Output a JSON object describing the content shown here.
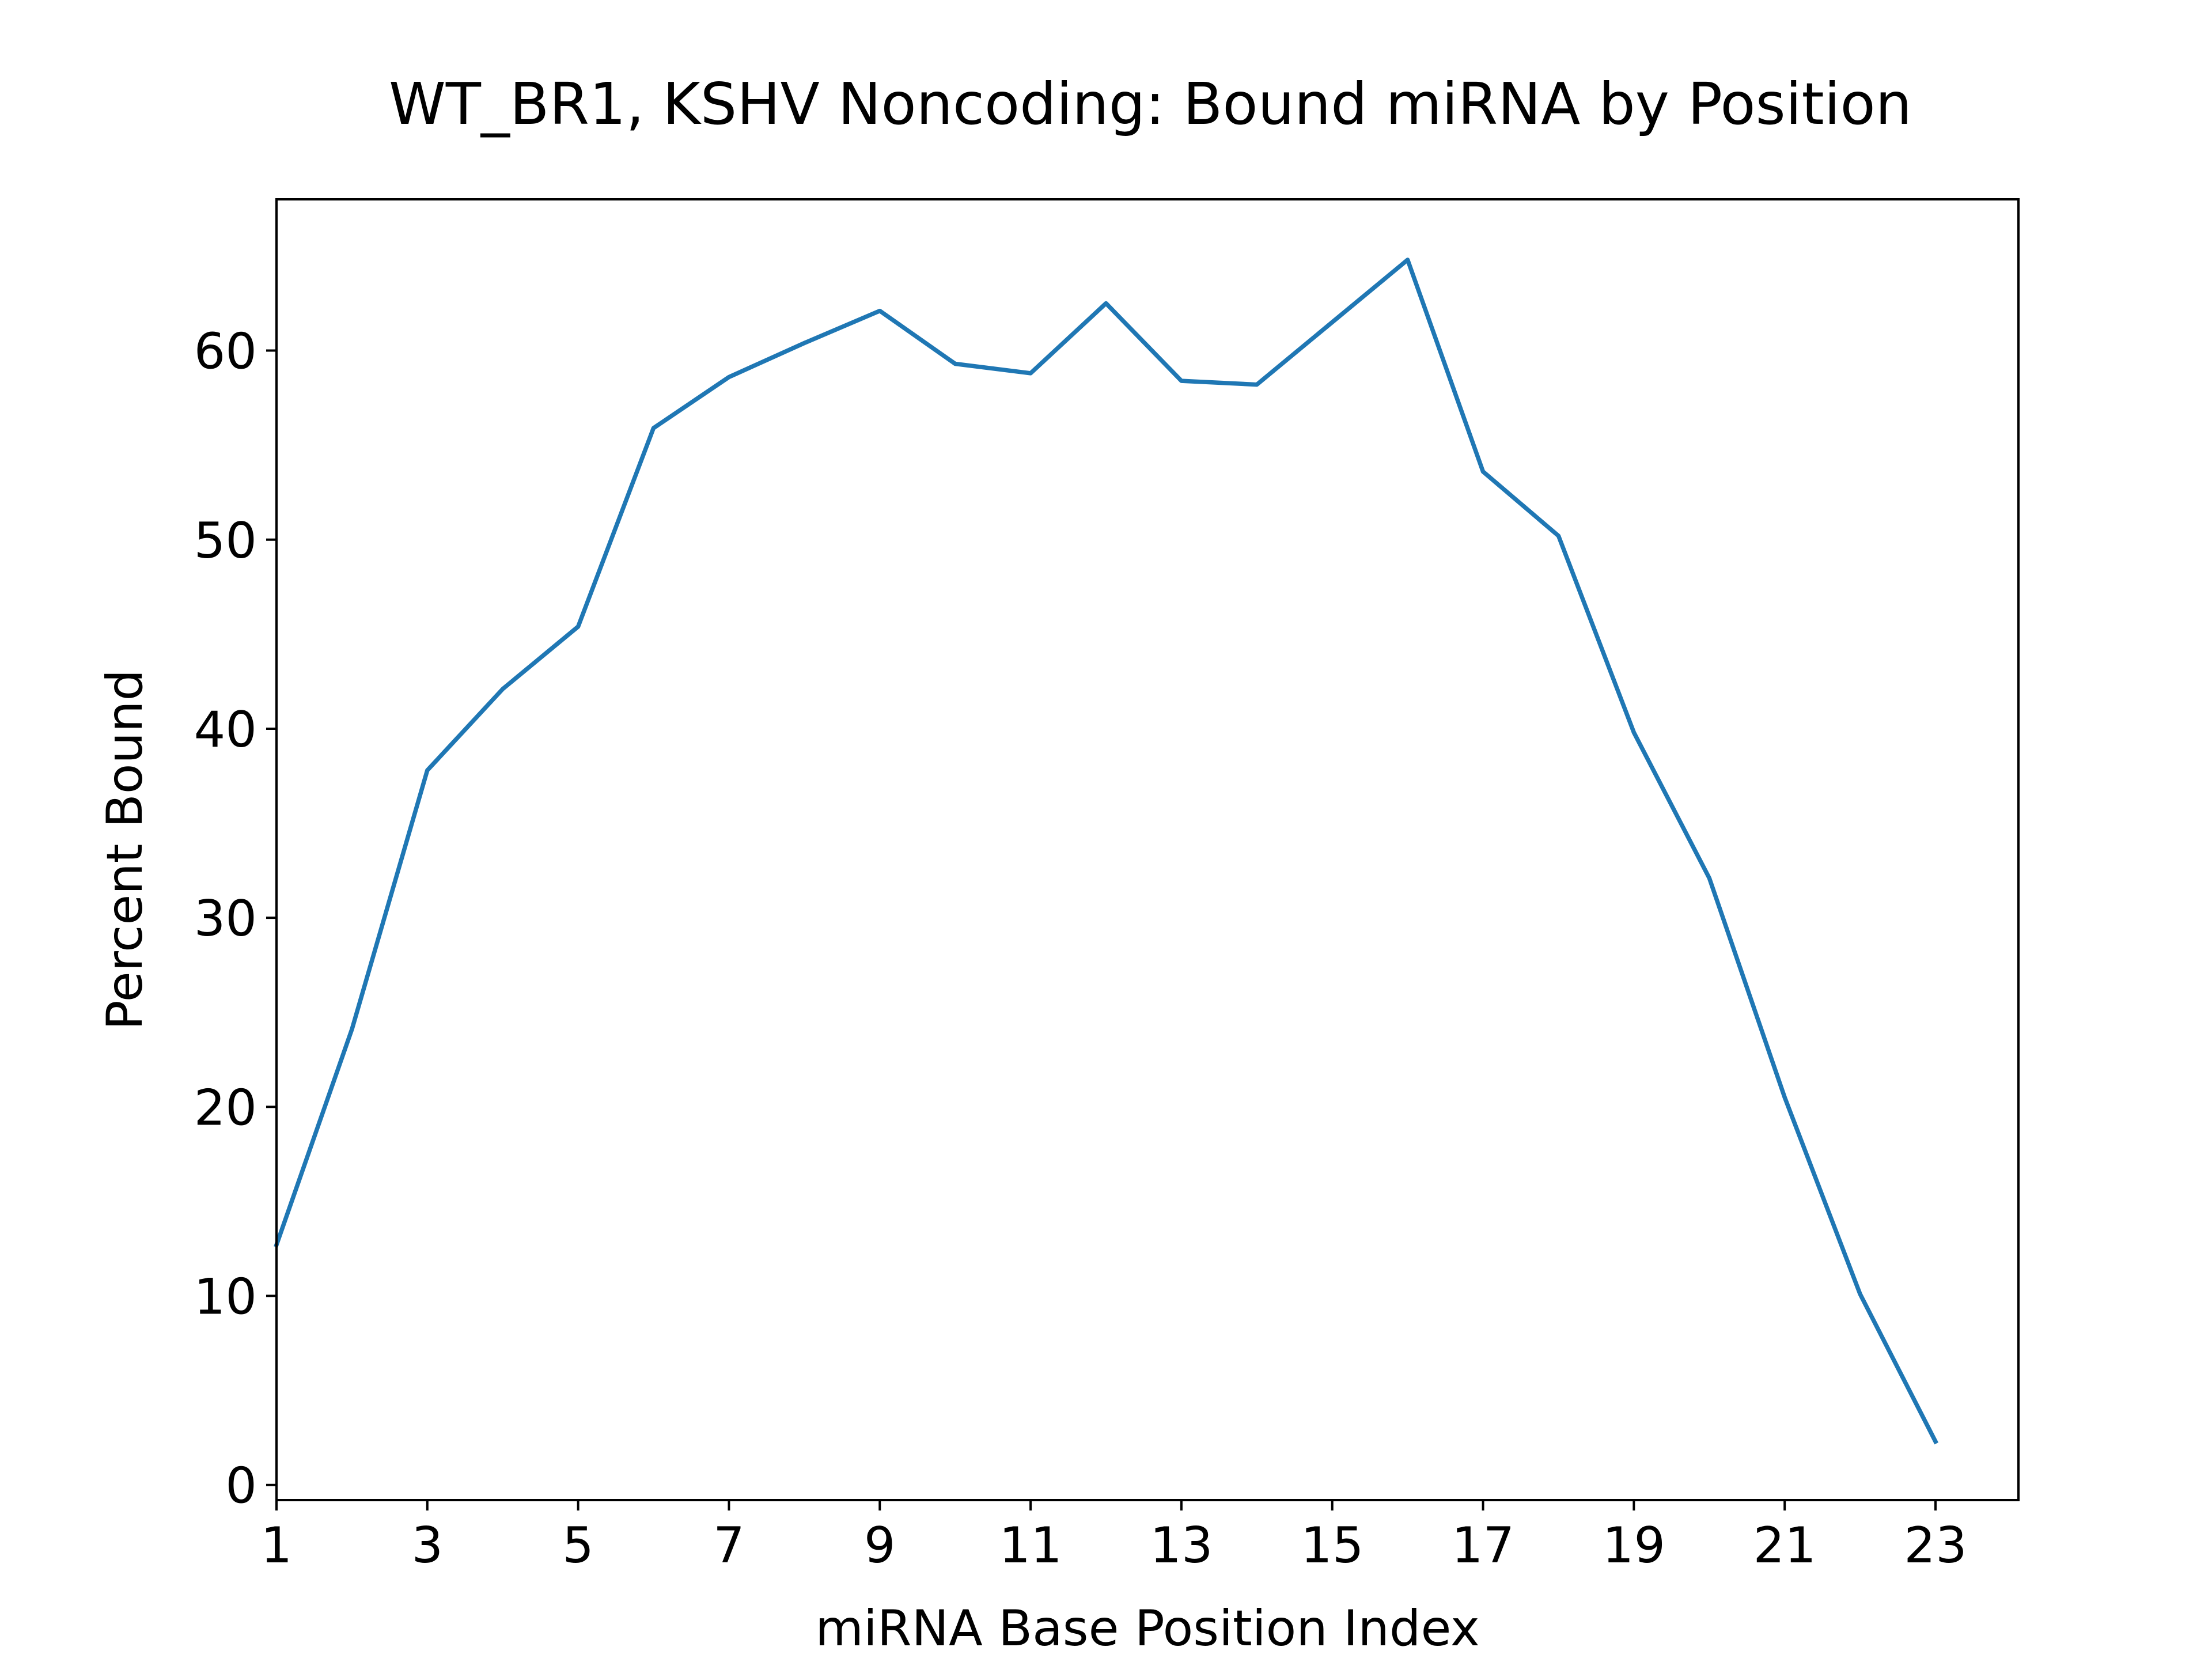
{
  "chart_data": {
    "type": "line",
    "title": "WT_BR1, KSHV Noncoding: Bound miRNA by Position",
    "xlabel": "miRNA Base Position Index",
    "ylabel": "Percent Bound",
    "xlim": [
      1,
      24.1
    ],
    "ylim": [
      -0.8,
      68
    ],
    "xticks": [
      1,
      3,
      5,
      7,
      9,
      11,
      13,
      15,
      17,
      19,
      21,
      23
    ],
    "yticks": [
      0,
      10,
      20,
      30,
      40,
      50,
      60
    ],
    "grid": false,
    "series": [
      {
        "color": "#1f77b4",
        "x": [
          1,
          2,
          3,
          4,
          5,
          6,
          7,
          8,
          9,
          10,
          11,
          12,
          13,
          14,
          15,
          16,
          17,
          18,
          19,
          20,
          21,
          22,
          23
        ],
        "y": [
          12.7,
          24.1,
          37.8,
          42.1,
          45.4,
          55.9,
          58.6,
          60.4,
          62.1,
          59.3,
          58.8,
          62.5,
          58.4,
          58.2,
          61.5,
          64.8,
          53.6,
          50.2,
          39.8,
          32.1,
          20.5,
          10.1,
          2.3
        ]
      }
    ]
  }
}
